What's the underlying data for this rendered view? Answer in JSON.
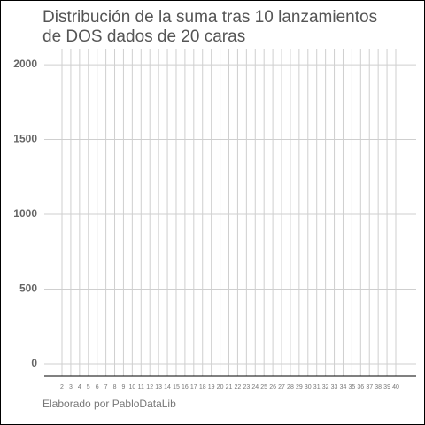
{
  "chart_data": {
    "type": "bar",
    "title": [
      "Distribución de la suma tras 10 lanzamientos",
      "de DOS dados de 20 caras"
    ],
    "caption": "Elaborado por PabloDataLib",
    "categories": [
      "2",
      "3",
      "4",
      "5",
      "6",
      "7",
      "8",
      "9",
      "10",
      "11",
      "12",
      "13",
      "14",
      "15",
      "16",
      "17",
      "18",
      "19",
      "20",
      "21",
      "22",
      "23",
      "24",
      "25",
      "26",
      "27",
      "28",
      "29",
      "30",
      "31",
      "32",
      "33",
      "34",
      "35",
      "36",
      "37",
      "38",
      "39",
      "40"
    ],
    "values": [
      0,
      0,
      0,
      0,
      0,
      0,
      0,
      0,
      0,
      0,
      0,
      0,
      0,
      0,
      0,
      0,
      0,
      0,
      0,
      0,
      0,
      0,
      0,
      0,
      0,
      0,
      0,
      0,
      0,
      0,
      0,
      0,
      0,
      0,
      0,
      0,
      0,
      0,
      0
    ],
    "ylim": [
      -83,
      2107
    ],
    "yticks": [
      0,
      500,
      1000,
      1500,
      2000
    ],
    "grid": true
  }
}
